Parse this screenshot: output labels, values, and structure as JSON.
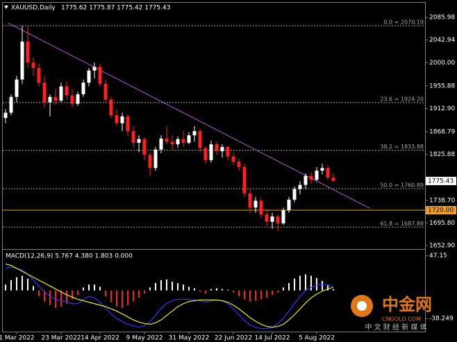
{
  "chart_data": [
    {
      "type": "candlestick",
      "symbol": "XAUUSD,Daily",
      "ohlc_header": "1775.62 1775.87 1775.42 1775.43",
      "categories": [
        null,
        null,
        "1 Mar 2022",
        null,
        null,
        null,
        null,
        null,
        null,
        null,
        "23 Mar 2022",
        null,
        null,
        null,
        null,
        null,
        null,
        "14 Apr 2022",
        null,
        null,
        null,
        null,
        null,
        null,
        null,
        "9 May 2022",
        null,
        null,
        null,
        null,
        null,
        null,
        null,
        "31 May 2022",
        null,
        null,
        null,
        null,
        null,
        null,
        null,
        "22 Jun 2022",
        null,
        null,
        null,
        null,
        null,
        null,
        "14 Jul 2022",
        null,
        null,
        null,
        null,
        null,
        null,
        null,
        "5 Aug 2022",
        null,
        null,
        null
      ],
      "open": [
        1895,
        1905,
        1935,
        1968,
        2040,
        2000,
        1990,
        1962,
        1925,
        1935,
        1928,
        1955,
        1938,
        1922,
        1940,
        1962,
        1985,
        1992,
        1960,
        1930,
        1900,
        1885,
        1898,
        1870,
        1848,
        1855,
        1825,
        1800,
        1835,
        1856,
        1850,
        1845,
        1855,
        1848,
        1862,
        1870,
        1838,
        1815,
        1845,
        1832,
        1840,
        1822,
        1812,
        1802,
        1752,
        1725,
        1738,
        1712,
        1698,
        1708,
        1695,
        1720,
        1740,
        1760,
        1768,
        1785,
        1778,
        1795,
        1800,
        1782
      ],
      "high": [
        1912,
        1940,
        1975,
        2070,
        2070,
        2010,
        1998,
        1975,
        1940,
        1950,
        1962,
        1965,
        1950,
        1945,
        1968,
        1990,
        2000,
        1998,
        1968,
        1935,
        1912,
        1905,
        1902,
        1880,
        1862,
        1858,
        1830,
        1840,
        1862,
        1880,
        1862,
        1860,
        1870,
        1868,
        1880,
        1875,
        1842,
        1852,
        1850,
        1845,
        1842,
        1830,
        1818,
        1808,
        1760,
        1745,
        1742,
        1722,
        1715,
        1712,
        1725,
        1745,
        1765,
        1775,
        1790,
        1792,
        1802,
        1808,
        1805,
        1790
      ],
      "low": [
        1885,
        1900,
        1925,
        1960,
        1990,
        1975,
        1955,
        1915,
        1898,
        1920,
        1925,
        1930,
        1915,
        1918,
        1935,
        1955,
        1970,
        1955,
        1925,
        1895,
        1880,
        1870,
        1860,
        1840,
        1830,
        1815,
        1785,
        1795,
        1828,
        1845,
        1835,
        1838,
        1840,
        1845,
        1850,
        1830,
        1808,
        1810,
        1825,
        1820,
        1815,
        1805,
        1795,
        1745,
        1715,
        1715,
        1705,
        1690,
        1685,
        1680,
        1692,
        1715,
        1735,
        1750,
        1760,
        1770,
        1775,
        1788,
        1778,
        1775
      ],
      "close": [
        1905,
        1935,
        1968,
        2040,
        2000,
        1990,
        1962,
        1925,
        1935,
        1928,
        1955,
        1938,
        1922,
        1940,
        1962,
        1985,
        1992,
        1960,
        1930,
        1900,
        1885,
        1898,
        1870,
        1848,
        1855,
        1825,
        1800,
        1835,
        1856,
        1850,
        1845,
        1855,
        1848,
        1862,
        1870,
        1838,
        1815,
        1845,
        1832,
        1840,
        1822,
        1812,
        1802,
        1752,
        1725,
        1738,
        1712,
        1698,
        1708,
        1695,
        1720,
        1740,
        1760,
        1768,
        1785,
        1778,
        1795,
        1800,
        1782,
        1775.43
      ],
      "up_color": "#ffffff",
      "down_color": "#ff2020",
      "ylim": [
        1647.6,
        2112.3
      ],
      "yticks": [
        2085.98,
        2042.94,
        {
          "value": 2000,
          "label": "2000.00"
        },
        1955.88,
        {
          "value": 1912.9,
          "label": "1912.90"
        },
        1868.79,
        1825.88,
        {
          "value": 1738.7,
          "label": "1738.70"
        },
        {
          "value": 1695.8,
          "label": "1695.80"
        },
        {
          "value": 1652.9,
          "label": "1652.90"
        }
      ],
      "fib_levels": [
        {
          "value": 2070.19,
          "label": "0.0 = 2070.19"
        },
        {
          "value": 1924.2,
          "label": "23.6 = 1924.20"
        },
        {
          "value": 1833.88,
          "label": "38.2 = 1833.88"
        },
        {
          "value": 1760.89,
          "label": "50.0 = 1760.89"
        },
        {
          "value": 1687.89,
          "label": "61.8 = 1687.89"
        }
      ],
      "fib_color": "#a8a8a8",
      "hline": {
        "value": 1720,
        "label": "1720.00",
        "color": "#f0a020"
      },
      "trendline": {
        "x": [
          0.5,
          65.5
        ],
        "y": [
          2075,
          1724
        ],
        "color": "#b45ad8"
      },
      "current_price": 1775.43
    },
    {
      "type": "macd",
      "title": "MACD(12,26,9) 5.767 4.380 1.803 0.000",
      "histogram": [
        8,
        14,
        18,
        20,
        16,
        6,
        -8,
        -15,
        -20,
        -24,
        -22,
        -18,
        -12,
        -6,
        4,
        8,
        8,
        5,
        -8,
        -16,
        -22,
        -24,
        -20,
        -15,
        -10,
        -4,
        4,
        10,
        14,
        15,
        12,
        10,
        8,
        5,
        3,
        -2,
        -4,
        2,
        3,
        2,
        1,
        -3,
        -8,
        -12,
        -15,
        -14,
        -12,
        -10,
        -6,
        -3,
        4,
        10,
        16,
        20,
        22,
        20,
        17,
        13,
        8,
        1.803
      ],
      "up_color": "#ffffff",
      "down_color": "#ff2020",
      "series": [
        {
          "color": "#1f3cff",
          "values": [
            30,
            32,
            30,
            28,
            22,
            14,
            6,
            -2,
            -8,
            -12,
            -14,
            -16,
            -18,
            -18,
            -12,
            -8,
            -10,
            -16,
            -24,
            -32,
            -38,
            -42,
            -46,
            -48,
            -50,
            -48,
            -42,
            -34,
            -24,
            -18,
            -14,
            -12,
            -12,
            -12,
            -13,
            -14,
            -16,
            -14,
            -13,
            -14,
            -18,
            -25,
            -33,
            -41,
            -47,
            -50,
            -52,
            -52,
            -50,
            -45,
            -38,
            -28,
            -18,
            -8,
            0,
            4,
            7,
            8,
            7,
            5.767
          ]
        },
        {
          "color": "#f0f000",
          "values": [
            36,
            34,
            30,
            26,
            22,
            18,
            14,
            10,
            6,
            2,
            -2,
            -6,
            -9,
            -12,
            -14,
            -16,
            -18,
            -20,
            -22,
            -25,
            -28,
            -32,
            -36,
            -40,
            -43,
            -45,
            -46,
            -44,
            -40,
            -34,
            -28,
            -22,
            -18,
            -15,
            -14,
            -13,
            -13,
            -13,
            -13,
            -14,
            -16,
            -20,
            -25,
            -31,
            -37,
            -42,
            -46,
            -49,
            -50,
            -49,
            -46,
            -40,
            -33,
            -25,
            -17,
            -10,
            -5,
            -1,
            2,
            4.38
          ]
        }
      ],
      "ylim": [
        -56,
        53.5
      ],
      "yticks": [
        47.15,
        -38.249
      ]
    }
  ],
  "watermark": {
    "brand": "中金网",
    "domain": "CNGOLD.COM",
    "slogan": "中 文 财 经 新 媒 体"
  }
}
